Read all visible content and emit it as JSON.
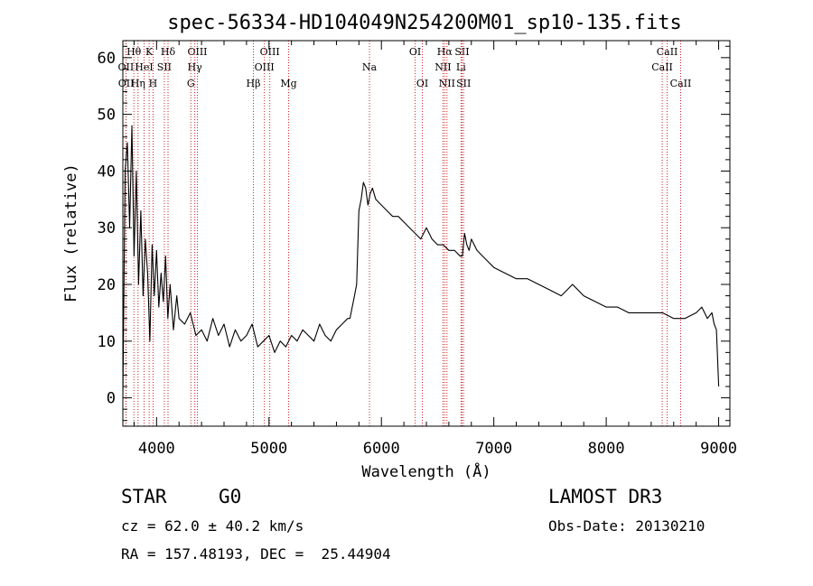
{
  "chart_data": {
    "type": "line",
    "title": "spec-56334-HD104049N254200M01_sp10-135.fits",
    "xlabel": "Wavelength (Å)",
    "ylabel": "Flux (relative)",
    "xlim": [
      3700,
      9100
    ],
    "ylim": [
      -5,
      63
    ],
    "xticks": [
      4000,
      5000,
      6000,
      7000,
      8000,
      9000
    ],
    "yticks": [
      0,
      10,
      20,
      30,
      40,
      50,
      60
    ],
    "series": [
      {
        "name": "flux",
        "x": [
          3700,
          3720,
          3740,
          3760,
          3780,
          3800,
          3820,
          3840,
          3860,
          3880,
          3900,
          3920,
          3940,
          3960,
          3980,
          4000,
          4020,
          4040,
          4060,
          4080,
          4100,
          4120,
          4150,
          4180,
          4200,
          4250,
          4300,
          4350,
          4400,
          4450,
          4500,
          4550,
          4600,
          4650,
          4700,
          4750,
          4800,
          4850,
          4900,
          4950,
          5000,
          5050,
          5100,
          5150,
          5200,
          5250,
          5300,
          5350,
          5400,
          5450,
          5500,
          5550,
          5600,
          5650,
          5700,
          5720,
          5740,
          5760,
          5780,
          5800,
          5820,
          5840,
          5860,
          5880,
          5900,
          5920,
          5950,
          6000,
          6050,
          6100,
          6150,
          6200,
          6250,
          6300,
          6350,
          6400,
          6450,
          6500,
          6550,
          6600,
          6650,
          6700,
          6720,
          6740,
          6760,
          6780,
          6800,
          6850,
          6900,
          6950,
          7000,
          7100,
          7200,
          7300,
          7400,
          7500,
          7600,
          7700,
          7800,
          7900,
          8000,
          8100,
          8200,
          8300,
          8400,
          8500,
          8600,
          8700,
          8800,
          8850,
          8900,
          8940,
          8960,
          8980,
          9000
        ],
        "y": [
          0,
          40,
          45,
          30,
          48,
          25,
          40,
          20,
          33,
          18,
          28,
          22,
          10,
          27,
          18,
          26,
          16,
          22,
          17,
          25,
          14,
          20,
          12,
          18,
          14,
          13,
          15,
          11,
          12,
          10,
          14,
          11,
          13,
          9,
          12,
          10,
          11,
          13,
          9,
          10,
          11,
          8,
          10,
          9,
          11,
          10,
          12,
          11,
          10,
          13,
          11,
          10,
          12,
          13,
          14,
          14,
          16,
          18,
          20,
          33,
          35,
          38,
          37,
          34,
          36,
          37,
          35,
          34,
          33,
          32,
          32,
          31,
          30,
          29,
          28,
          30,
          28,
          27,
          27,
          26,
          26,
          25,
          25,
          29,
          27,
          26,
          28,
          26,
          25,
          24,
          23,
          22,
          21,
          21,
          20,
          19,
          18,
          20,
          18,
          17,
          16,
          16,
          15,
          15,
          15,
          15,
          14,
          14,
          15,
          16,
          14,
          15,
          13,
          12,
          2
        ]
      }
    ],
    "spectral_lines": [
      {
        "label": "Hθ",
        "wavelength": 3798,
        "row": 1
      },
      {
        "label": "OII",
        "wavelength": 3727,
        "row": 2
      },
      {
        "label": "OII",
        "wavelength": 3729,
        "row": 3
      },
      {
        "label": "HeI",
        "wavelength": 3889,
        "row": 2
      },
      {
        "label": "Hη",
        "wavelength": 3835,
        "row": 3
      },
      {
        "label": "K",
        "wavelength": 3934,
        "row": 1
      },
      {
        "label": "SII",
        "wavelength": 4069,
        "row": 2
      },
      {
        "label": "H",
        "wavelength": 3969,
        "row": 3
      },
      {
        "label": "Hδ",
        "wavelength": 4102,
        "row": 1
      },
      {
        "label": "OIII",
        "wavelength": 4363,
        "row": 1
      },
      {
        "label": "Hγ",
        "wavelength": 4340,
        "row": 2
      },
      {
        "label": "G",
        "wavelength": 4305,
        "row": 3
      },
      {
        "label": "Hβ",
        "wavelength": 4861,
        "row": 3
      },
      {
        "label": "OIII",
        "wavelength": 5007,
        "row": 1
      },
      {
        "label": "OIII",
        "wavelength": 4959,
        "row": 2
      },
      {
        "label": "Mg",
        "wavelength": 5175,
        "row": 3
      },
      {
        "label": "Na",
        "wavelength": 5894,
        "row": 2
      },
      {
        "label": "OI",
        "wavelength": 6300,
        "row": 1
      },
      {
        "label": "OI",
        "wavelength": 6364,
        "row": 3
      },
      {
        "label": "Hα",
        "wavelength": 6563,
        "row": 1
      },
      {
        "label": "NII",
        "wavelength": 6548,
        "row": 2
      },
      {
        "label": "NII",
        "wavelength": 6583,
        "row": 3
      },
      {
        "label": "SII",
        "wavelength": 6717,
        "row": 1
      },
      {
        "label": "Li",
        "wavelength": 6708,
        "row": 2
      },
      {
        "label": "SII",
        "wavelength": 6731,
        "row": 3
      },
      {
        "label": "CaII",
        "wavelength": 8542,
        "row": 1
      },
      {
        "label": "CaII",
        "wavelength": 8498,
        "row": 2
      },
      {
        "label": "CaII",
        "wavelength": 8662,
        "row": 3
      }
    ]
  },
  "info": {
    "class": "STAR",
    "subclass": "G0",
    "survey": "LAMOST DR3",
    "cz": "cz = 62.0 ± 40.2 km/s",
    "obs_date": "Obs-Date: 20130210",
    "coords": "RA = 157.48193, DEC =  25.44904"
  }
}
